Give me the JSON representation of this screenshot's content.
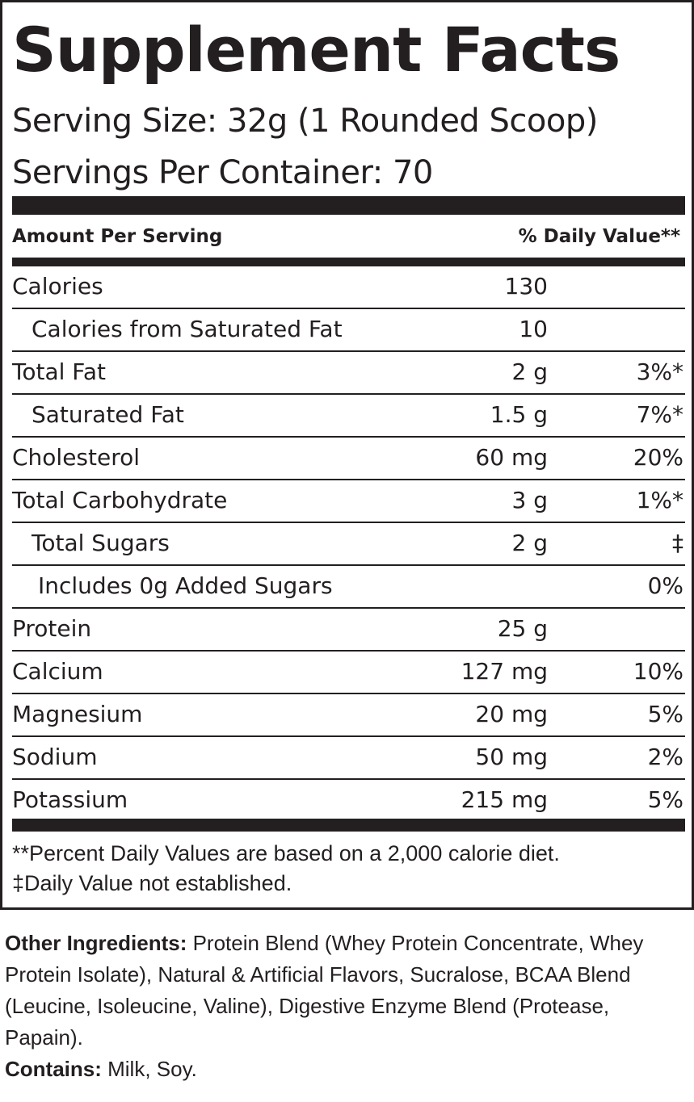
{
  "label": {
    "title": "Supplement Facts",
    "serving_size": "Serving Size: 32g (1 Rounded Scoop)",
    "servings_per_container": "Servings Per Container: 70",
    "header_amount": "Amount Per Serving",
    "header_dv": "% Daily Value**",
    "rows": [
      {
        "name": "Calories",
        "amount": "130",
        "dv": "",
        "indent": 0
      },
      {
        "name": "Calories from Saturated Fat",
        "amount": "10",
        "dv": "",
        "indent": 1
      },
      {
        "name": "Total Fat",
        "amount": "2 g",
        "dv": "3%*",
        "indent": 0
      },
      {
        "name": "Saturated Fat",
        "amount": "1.5 g",
        "dv": "7%*",
        "indent": 1
      },
      {
        "name": "Cholesterol",
        "amount": "60 mg",
        "dv": "20%",
        "indent": 0
      },
      {
        "name": "Total Carbohydrate",
        "amount": "3 g",
        "dv": "1%*",
        "indent": 0
      },
      {
        "name": "Total Sugars",
        "amount": "2 g",
        "dv": "‡",
        "indent": 1
      },
      {
        "name": "Includes 0g Added Sugars",
        "amount": "",
        "dv": "0%",
        "indent": 2
      },
      {
        "name": "Protein",
        "amount": "25 g",
        "dv": "",
        "indent": 0
      },
      {
        "name": "Calcium",
        "amount": "127 mg",
        "dv": "10%",
        "indent": 0
      },
      {
        "name": "Magnesium",
        "amount": "20 mg",
        "dv": "5%",
        "indent": 0
      },
      {
        "name": "Sodium",
        "amount": "50 mg",
        "dv": "2%",
        "indent": 0
      },
      {
        "name": "Potassium",
        "amount": "215 mg",
        "dv": "5%",
        "indent": 0
      }
    ],
    "footnote_1": "**Percent Daily Values are based on a 2,000 calorie diet.",
    "footnote_2": "‡Daily Value not established."
  },
  "ingredients": {
    "other_label": "Other Ingredients:",
    "other_text": " Protein Blend (Whey Protein Concentrate, Whey Protein Isolate), Natural & Artificial Flavors, Sucralose, BCAA Blend (Leucine, Isoleucine, Valine), Digestive Enzyme Blend (Protease, Papain).",
    "contains_label": "Contains:",
    "contains_text": " Milk, Soy."
  }
}
